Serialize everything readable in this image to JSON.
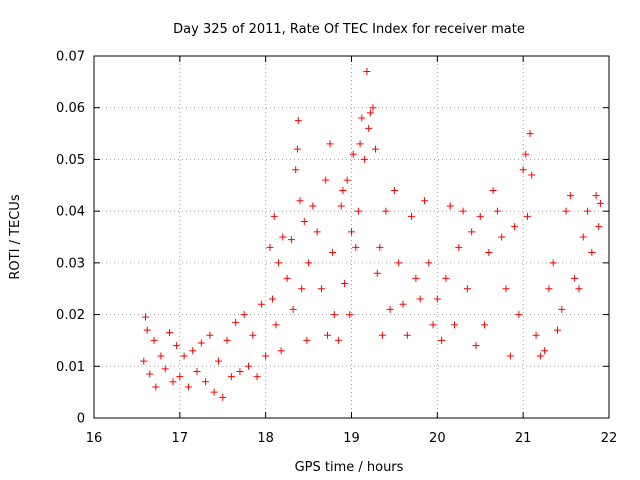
{
  "chart_data": {
    "type": "scatter",
    "title": "Day 325 of 2011, Rate Of TEC Index for receiver mate",
    "xlabel": "GPS time / hours",
    "ylabel": "ROTI / TECUs",
    "xlim": [
      16,
      22
    ],
    "ylim": [
      0,
      0.07
    ],
    "x_ticks": [
      "16",
      "17",
      "18",
      "19",
      "20",
      "21",
      "22"
    ],
    "y_ticks": [
      "0",
      "0.01",
      "0.02",
      "0.03",
      "0.04",
      "0.05",
      "0.06",
      "0.07"
    ],
    "grid": true,
    "marker": "plus",
    "color": "#ff0000",
    "series": [
      {
        "points": [
          [
            16.6,
            0.0195
          ],
          [
            16.62,
            0.017
          ],
          [
            16.58,
            0.011
          ],
          [
            16.65,
            0.0085
          ],
          [
            16.7,
            0.015
          ],
          [
            16.72,
            0.006
          ],
          [
            16.78,
            0.012
          ],
          [
            16.83,
            0.0095
          ],
          [
            16.88,
            0.0165
          ],
          [
            16.92,
            0.007
          ],
          [
            16.96,
            0.014
          ],
          [
            17.0,
            0.008
          ],
          [
            17.05,
            0.012
          ],
          [
            17.1,
            0.006
          ],
          [
            17.15,
            0.013
          ],
          [
            17.2,
            0.009
          ],
          [
            17.25,
            0.0145
          ],
          [
            17.3,
            0.007
          ],
          [
            17.35,
            0.016
          ],
          [
            17.4,
            0.005
          ],
          [
            17.45,
            0.011
          ],
          [
            17.5,
            0.004
          ],
          [
            17.55,
            0.015
          ],
          [
            17.6,
            0.008
          ],
          [
            17.65,
            0.0185
          ],
          [
            17.7,
            0.009
          ],
          [
            17.75,
            0.02
          ],
          [
            17.8,
            0.01
          ],
          [
            17.85,
            0.016
          ],
          [
            17.9,
            0.008
          ],
          [
            17.95,
            0.022
          ],
          [
            18.0,
            0.012
          ],
          [
            18.05,
            0.033
          ],
          [
            18.08,
            0.023
          ],
          [
            18.1,
            0.039
          ],
          [
            18.12,
            0.018
          ],
          [
            18.15,
            0.03
          ],
          [
            18.18,
            0.013
          ],
          [
            18.2,
            0.035
          ],
          [
            18.25,
            0.027
          ],
          [
            18.3,
            0.0345
          ],
          [
            18.32,
            0.021
          ],
          [
            18.35,
            0.048
          ],
          [
            18.37,
            0.052
          ],
          [
            18.38,
            0.0575
          ],
          [
            18.4,
            0.042
          ],
          [
            18.42,
            0.025
          ],
          [
            18.45,
            0.038
          ],
          [
            18.48,
            0.015
          ],
          [
            18.5,
            0.03
          ],
          [
            18.55,
            0.041
          ],
          [
            18.6,
            0.036
          ],
          [
            18.65,
            0.025
          ],
          [
            18.7,
            0.046
          ],
          [
            18.72,
            0.016
          ],
          [
            18.75,
            0.053
          ],
          [
            18.78,
            0.032
          ],
          [
            18.8,
            0.02
          ],
          [
            18.85,
            0.015
          ],
          [
            18.88,
            0.041
          ],
          [
            18.9,
            0.044
          ],
          [
            18.92,
            0.026
          ],
          [
            18.95,
            0.046
          ],
          [
            18.98,
            0.02
          ],
          [
            19.0,
            0.036
          ],
          [
            19.02,
            0.051
          ],
          [
            19.05,
            0.033
          ],
          [
            19.08,
            0.04
          ],
          [
            19.1,
            0.053
          ],
          [
            19.12,
            0.058
          ],
          [
            19.15,
            0.05
          ],
          [
            19.18,
            0.067
          ],
          [
            19.2,
            0.056
          ],
          [
            19.22,
            0.059
          ],
          [
            19.25,
            0.06
          ],
          [
            19.28,
            0.052
          ],
          [
            19.3,
            0.028
          ],
          [
            19.33,
            0.033
          ],
          [
            19.36,
            0.016
          ],
          [
            19.4,
            0.04
          ],
          [
            19.45,
            0.021
          ],
          [
            19.5,
            0.044
          ],
          [
            19.55,
            0.03
          ],
          [
            19.6,
            0.022
          ],
          [
            19.65,
            0.016
          ],
          [
            19.7,
            0.039
          ],
          [
            19.75,
            0.027
          ],
          [
            19.8,
            0.023
          ],
          [
            19.85,
            0.042
          ],
          [
            19.9,
            0.03
          ],
          [
            19.95,
            0.018
          ],
          [
            20.0,
            0.023
          ],
          [
            20.05,
            0.015
          ],
          [
            20.1,
            0.027
          ],
          [
            20.15,
            0.041
          ],
          [
            20.2,
            0.018
          ],
          [
            20.25,
            0.033
          ],
          [
            20.3,
            0.04
          ],
          [
            20.35,
            0.025
          ],
          [
            20.4,
            0.036
          ],
          [
            20.45,
            0.014
          ],
          [
            20.5,
            0.039
          ],
          [
            20.55,
            0.018
          ],
          [
            20.6,
            0.032
          ],
          [
            20.65,
            0.044
          ],
          [
            20.7,
            0.04
          ],
          [
            20.75,
            0.035
          ],
          [
            20.8,
            0.025
          ],
          [
            20.85,
            0.012
          ],
          [
            20.9,
            0.037
          ],
          [
            20.95,
            0.02
          ],
          [
            21.0,
            0.048
          ],
          [
            21.03,
            0.051
          ],
          [
            21.05,
            0.039
          ],
          [
            21.08,
            0.055
          ],
          [
            21.1,
            0.047
          ],
          [
            21.15,
            0.016
          ],
          [
            21.2,
            0.012
          ],
          [
            21.25,
            0.013
          ],
          [
            21.3,
            0.025
          ],
          [
            21.35,
            0.03
          ],
          [
            21.4,
            0.017
          ],
          [
            21.45,
            0.021
          ],
          [
            21.5,
            0.04
          ],
          [
            21.55,
            0.043
          ],
          [
            21.6,
            0.027
          ],
          [
            21.65,
            0.025
          ],
          [
            21.7,
            0.035
          ],
          [
            21.75,
            0.04
          ],
          [
            21.8,
            0.032
          ],
          [
            21.85,
            0.043
          ],
          [
            21.88,
            0.037
          ],
          [
            21.9,
            0.0415
          ]
        ]
      }
    ]
  }
}
